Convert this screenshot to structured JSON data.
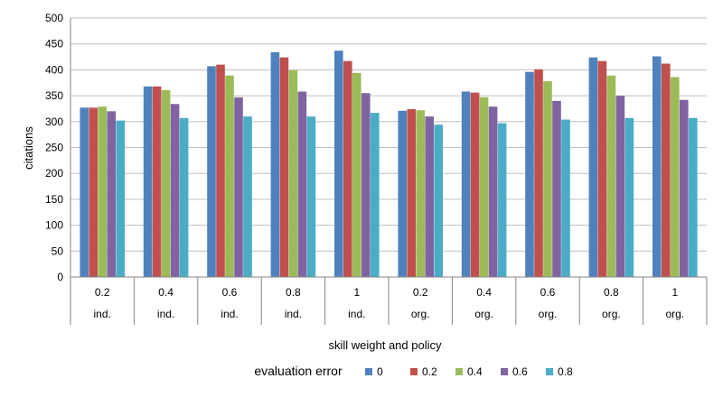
{
  "chart_data": {
    "type": "bar",
    "ylabel": "citations",
    "xlabel": "skill weight and policy",
    "ylim": [
      0,
      500
    ],
    "yticks": [
      0,
      50,
      100,
      150,
      200,
      250,
      300,
      350,
      400,
      450,
      500
    ],
    "grid": "horizontal",
    "legend_title": "evaluation error",
    "legend_position": "bottom",
    "categories": [
      "0.2",
      "0.4",
      "0.6",
      "0.8",
      "1",
      "0.2",
      "0.4",
      "0.6",
      "0.8",
      "1"
    ],
    "groups": [
      "ind.",
      "ind.",
      "ind.",
      "ind.",
      "ind.",
      "org.",
      "org.",
      "org.",
      "org.",
      "org."
    ],
    "series": [
      {
        "name": "0",
        "color": "#4f81bd",
        "values": [
          327,
          368,
          407,
          434,
          437,
          321,
          358,
          396,
          424,
          426
        ]
      },
      {
        "name": "0.2",
        "color": "#c0504d",
        "values": [
          327,
          368,
          410,
          424,
          417,
          324,
          356,
          401,
          417,
          412
        ]
      },
      {
        "name": "0.4",
        "color": "#9bbb59",
        "values": [
          329,
          361,
          389,
          399,
          394,
          322,
          347,
          378,
          389,
          386
        ]
      },
      {
        "name": "0.6",
        "color": "#8064a2",
        "values": [
          320,
          334,
          347,
          358,
          355,
          310,
          329,
          340,
          350,
          342
        ]
      },
      {
        "name": "0.8",
        "color": "#4bacc6",
        "values": [
          302,
          307,
          310,
          310,
          317,
          294,
          297,
          304,
          307,
          307
        ]
      }
    ]
  }
}
